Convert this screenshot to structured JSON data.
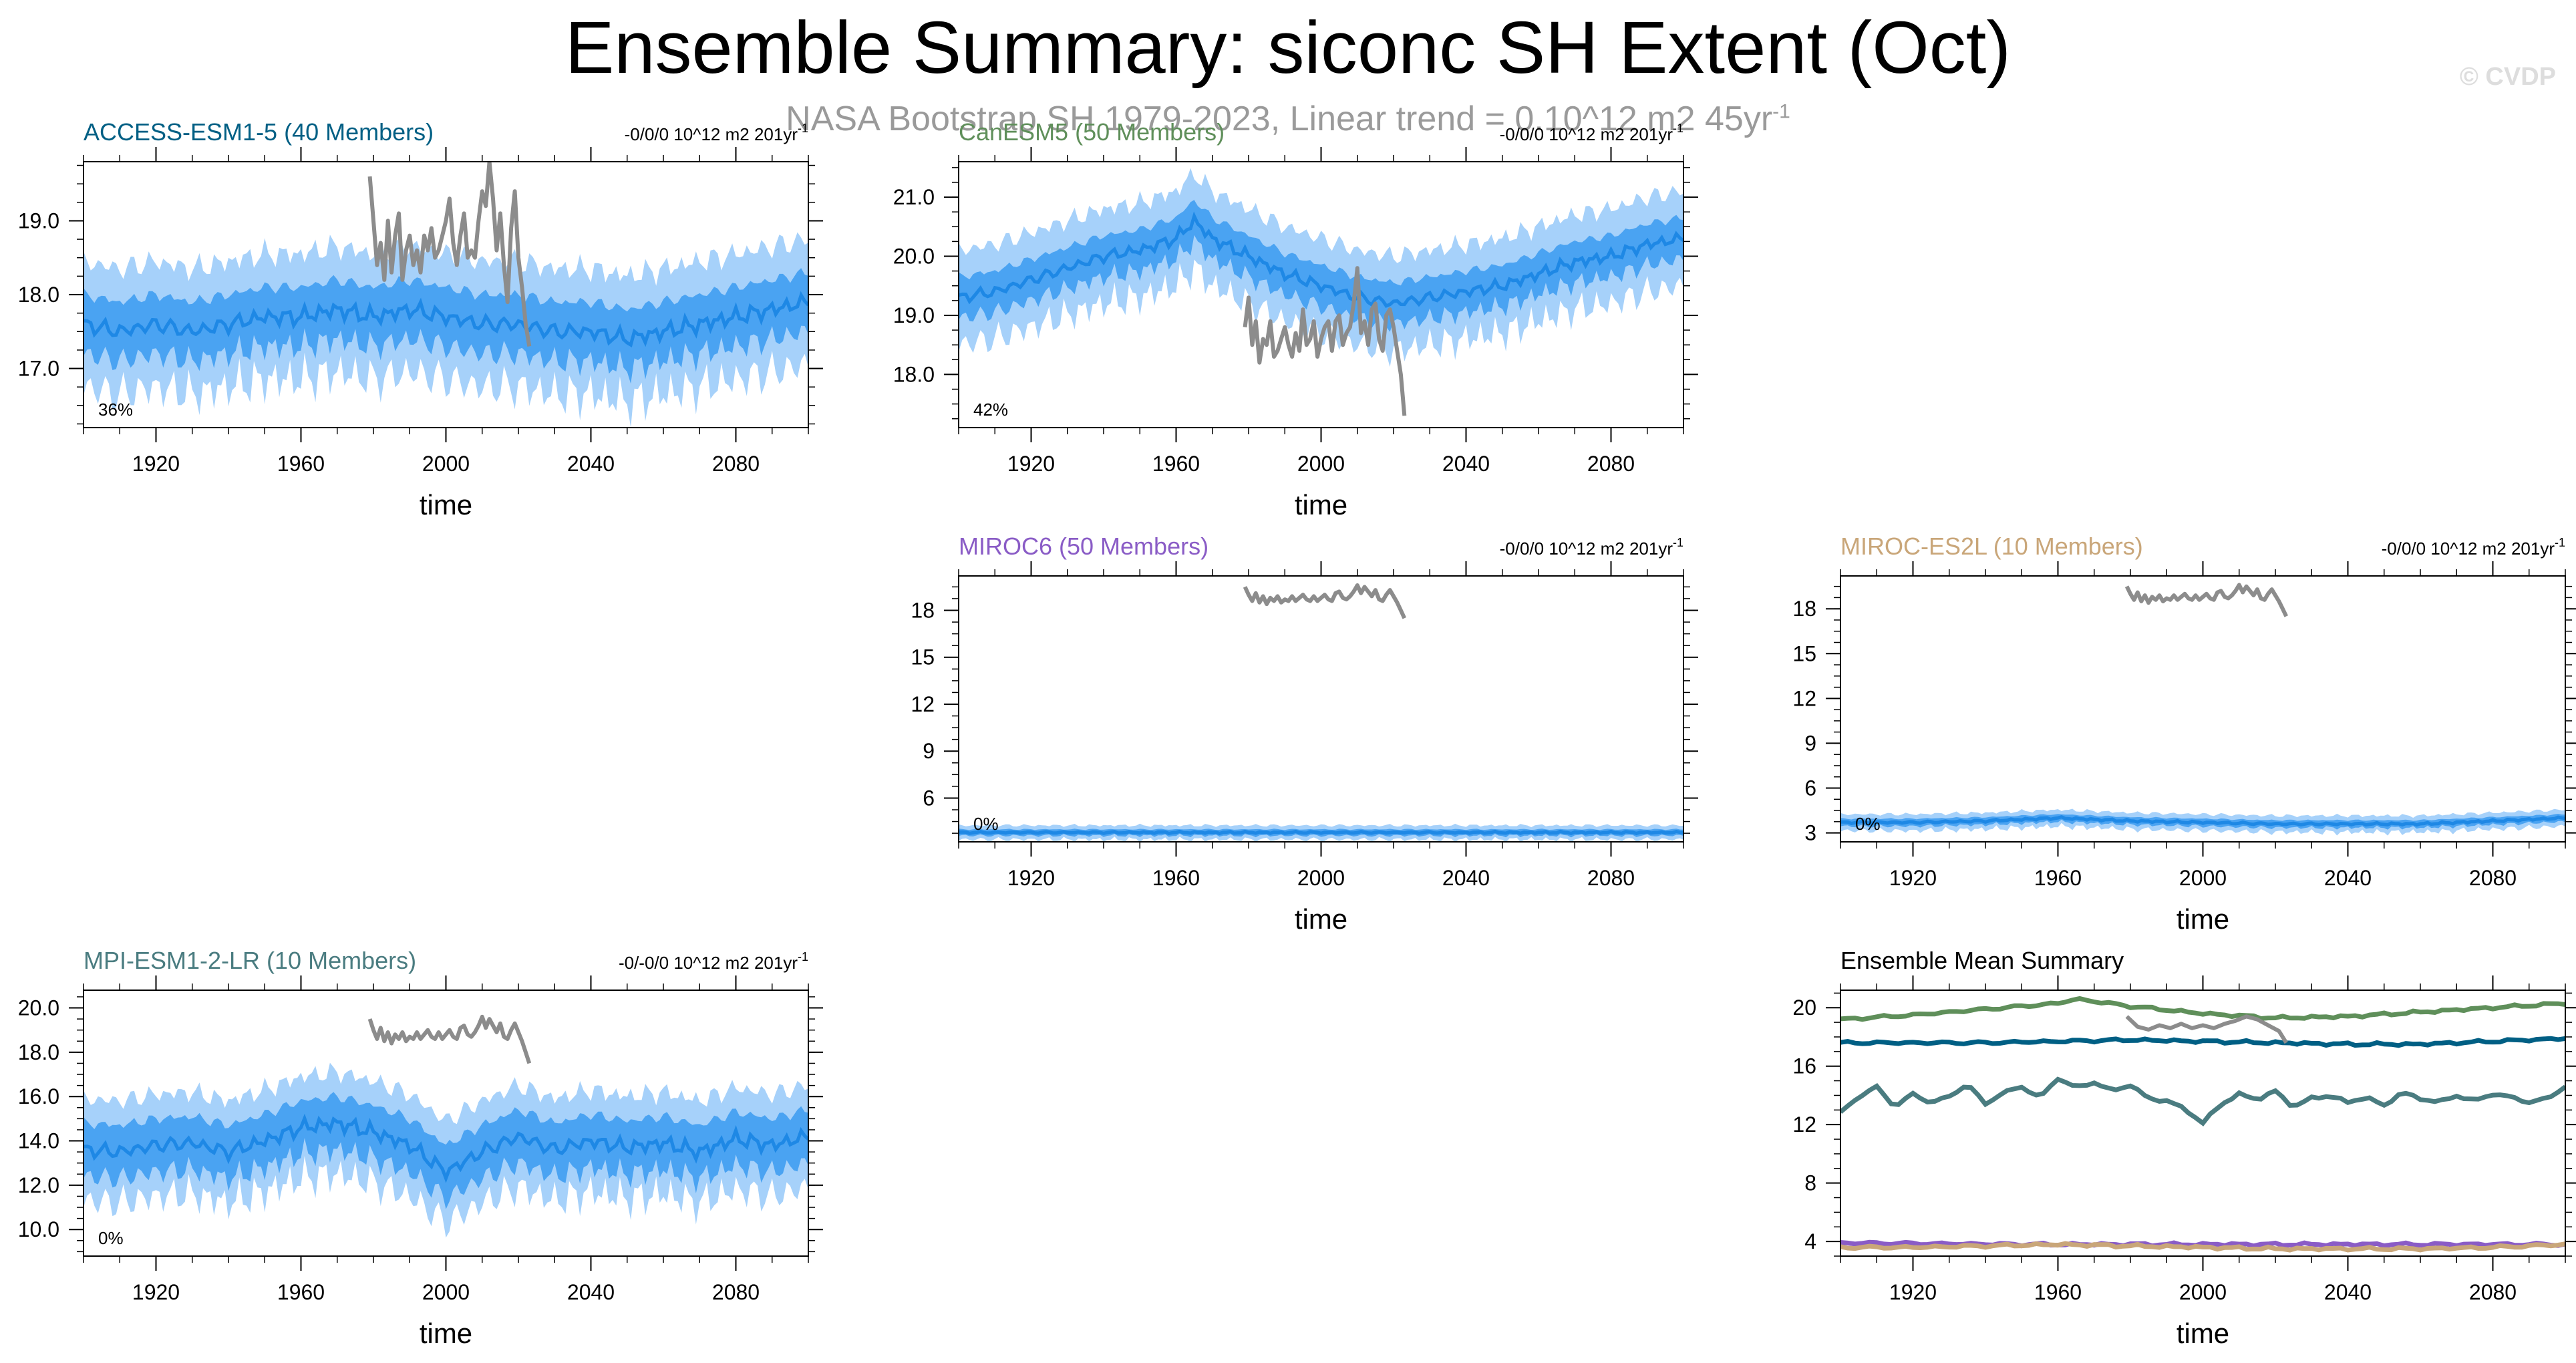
{
  "title": "Ensemble Summary: siconc SH Extent (Oct)",
  "subtitle": "NASA Bootstrap SH 1979-2023, Linear trend = 0.10^12 m2 45yr",
  "subtitle_sup": "-1",
  "credit": "© CVDP",
  "colors": {
    "band_outer": "#a6d1fa",
    "band_inner": "#4aa3f2",
    "mean_line": "#1e88e5",
    "obs_line": "#8c8c8c",
    "access": "#005f84",
    "canesm": "#5f8f5a",
    "miroc6": "#8a5cc6",
    "mirocesl": "#c9a679",
    "mpi": "#4a7c80"
  },
  "chart_data": [
    {
      "type": "line",
      "name": "access",
      "title": "ACCESS-ESM1-5 (40 Members)",
      "title_color": "#005f84",
      "trend": "-0/0/0 10^12 m2 201yr",
      "trend_sup": "-1",
      "percent": "36%",
      "xlabel": "time",
      "xlim": [
        1900,
        2100
      ],
      "xticks": [
        "1920",
        "1960",
        "2000",
        "2040",
        "2080"
      ],
      "ylim": [
        16.2,
        19.8
      ],
      "yticks": [
        "17.0",
        "18.0",
        "19.0"
      ],
      "yticks_val": [
        17.0,
        18.0,
        19.0
      ],
      "ensemble_mean": {
        "x": [
          1900,
          1910,
          1920,
          1930,
          1940,
          1950,
          1960,
          1970,
          1980,
          1990,
          2000,
          2010,
          2020,
          2030,
          2040,
          2050,
          2060,
          2070,
          2080,
          2090,
          2100
        ],
        "y": [
          17.6,
          17.5,
          17.6,
          17.5,
          17.6,
          17.7,
          17.7,
          17.8,
          17.7,
          17.8,
          17.7,
          17.6,
          17.6,
          17.5,
          17.5,
          17.4,
          17.5,
          17.6,
          17.7,
          17.8,
          17.9
        ]
      },
      "inner_halfwidth": 0.4,
      "outer_halfwidth": 0.85,
      "observations": {
        "x": [
          1979,
          1980,
          1981,
          1982,
          1983,
          1984,
          1985,
          1986,
          1987,
          1988,
          1989,
          1990,
          1991,
          1992,
          1993,
          1994,
          1995,
          1996,
          1997,
          1998,
          1999,
          2000,
          2001,
          2002,
          2003,
          2004,
          2005,
          2006,
          2007,
          2008,
          2009,
          2010,
          2011,
          2012,
          2013,
          2014,
          2015,
          2016,
          2017,
          2018,
          2019,
          2020,
          2021,
          2022,
          2023
        ],
        "y": [
          19.6,
          19.0,
          18.4,
          18.7,
          18.2,
          19.0,
          18.3,
          18.8,
          19.1,
          18.2,
          18.6,
          18.8,
          18.4,
          18.6,
          18.3,
          18.8,
          18.6,
          18.9,
          18.5,
          18.6,
          18.8,
          19.0,
          19.3,
          18.7,
          18.4,
          18.8,
          19.1,
          18.5,
          18.6,
          18.5,
          19.0,
          19.4,
          19.2,
          19.8,
          19.3,
          18.6,
          19.1,
          18.4,
          17.9,
          18.9,
          19.4,
          18.5,
          18.1,
          17.6,
          17.3
        ]
      }
    },
    {
      "type": "line",
      "name": "canesm",
      "title": "CanESM5 (50 Members)",
      "title_color": "#5f8f5a",
      "trend": "-0/0/0 10^12 m2 201yr",
      "trend_sup": "-1",
      "percent": "42%",
      "xlabel": "time",
      "xlim": [
        1900,
        2100
      ],
      "xticks": [
        "1920",
        "1960",
        "2000",
        "2040",
        "2080"
      ],
      "ylim": [
        17.1,
        21.6
      ],
      "yticks": [
        "18.0",
        "19.0",
        "20.0",
        "21.0"
      ],
      "yticks_val": [
        18.0,
        19.0,
        20.0,
        21.0
      ],
      "ensemble_mean": {
        "x": [
          1900,
          1910,
          1920,
          1930,
          1940,
          1950,
          1960,
          1965,
          1970,
          1980,
          1990,
          2000,
          2010,
          2020,
          2030,
          2040,
          2050,
          2060,
          2070,
          2080,
          2090,
          2100
        ],
        "y": [
          19.3,
          19.4,
          19.6,
          19.8,
          20.0,
          20.1,
          20.3,
          20.6,
          20.3,
          20.0,
          19.7,
          19.5,
          19.3,
          19.2,
          19.3,
          19.4,
          19.5,
          19.7,
          19.9,
          20.0,
          20.2,
          20.3
        ]
      },
      "inner_halfwidth": 0.35,
      "outer_halfwidth": 0.8,
      "observations": {
        "x": [
          1979,
          1980,
          1981,
          1982,
          1983,
          1984,
          1985,
          1986,
          1987,
          1988,
          1989,
          1990,
          1991,
          1992,
          1993,
          1994,
          1995,
          1996,
          1997,
          1998,
          1999,
          2000,
          2001,
          2002,
          2003,
          2004,
          2005,
          2006,
          2007,
          2008,
          2009,
          2010,
          2011,
          2012,
          2013,
          2014,
          2015,
          2016,
          2017,
          2018,
          2019,
          2020,
          2021,
          2022,
          2023
        ],
        "y": [
          18.8,
          19.3,
          18.5,
          18.9,
          18.2,
          18.6,
          18.5,
          18.9,
          18.3,
          18.4,
          18.6,
          18.8,
          18.5,
          18.3,
          18.7,
          18.4,
          19.1,
          18.5,
          18.6,
          18.9,
          18.3,
          18.6,
          18.8,
          18.9,
          18.4,
          18.9,
          19.0,
          18.5,
          18.7,
          18.8,
          19.2,
          19.8,
          18.7,
          18.9,
          18.5,
          19.1,
          19.2,
          18.6,
          18.4,
          19.0,
          19.1,
          18.8,
          18.4,
          18.0,
          17.3
        ]
      }
    },
    {
      "type": "line",
      "name": "miroc6",
      "title": "MIROC6 (50 Members)",
      "title_color": "#8a5cc6",
      "trend": "-0/0/0 10^12 m2 201yr",
      "trend_sup": "-1",
      "percent": "0%",
      "xlabel": "time",
      "xlim": [
        1900,
        2100
      ],
      "xticks": [
        "1920",
        "1960",
        "2000",
        "2040",
        "2080"
      ],
      "ylim": [
        3.2,
        20.2
      ],
      "yticks": [
        "6",
        "9",
        "12",
        "15",
        "18"
      ],
      "yticks_val": [
        6,
        9,
        12,
        15,
        18
      ],
      "ensemble_mean": {
        "x": [
          1900,
          1950,
          2000,
          2050,
          2100
        ],
        "y": [
          3.8,
          3.8,
          3.8,
          3.8,
          3.8
        ]
      },
      "inner_halfwidth": 0.2,
      "outer_halfwidth": 0.45,
      "observations": {
        "x": [
          1979,
          1980,
          1981,
          1982,
          1983,
          1984,
          1985,
          1986,
          1987,
          1988,
          1989,
          1990,
          1991,
          1992,
          1993,
          1994,
          1995,
          1996,
          1997,
          1998,
          1999,
          2000,
          2001,
          2002,
          2003,
          2004,
          2005,
          2006,
          2007,
          2008,
          2009,
          2010,
          2011,
          2012,
          2013,
          2014,
          2015,
          2016,
          2017,
          2018,
          2019,
          2020,
          2021,
          2022,
          2023
        ],
        "y": [
          19.5,
          19.0,
          18.6,
          19.1,
          18.5,
          18.9,
          18.4,
          18.8,
          18.6,
          18.9,
          18.5,
          18.7,
          18.6,
          18.9,
          18.6,
          18.8,
          19.0,
          18.7,
          18.6,
          18.9,
          18.6,
          18.8,
          19.0,
          18.7,
          18.6,
          19.1,
          19.2,
          18.8,
          18.7,
          18.9,
          19.2,
          19.6,
          19.1,
          19.5,
          19.2,
          18.9,
          19.3,
          18.7,
          18.6,
          19.0,
          19.3,
          18.9,
          18.5,
          18.0,
          17.5
        ]
      }
    },
    {
      "type": "line",
      "name": "mirocesl",
      "title": "MIROC-ES2L (10 Members)",
      "title_color": "#c9a679",
      "trend": "-0/0/0 10^12 m2 201yr",
      "trend_sup": "-1",
      "percent": "0%",
      "xlabel": "time",
      "xlim": [
        1900,
        2100
      ],
      "xticks": [
        "1920",
        "1960",
        "2000",
        "2040",
        "2080"
      ],
      "ylim": [
        2.4,
        20.2
      ],
      "yticks": [
        "3",
        "6",
        "9",
        "12",
        "15",
        "18"
      ],
      "yticks_val": [
        3,
        6,
        9,
        12,
        15,
        18
      ],
      "ensemble_mean": {
        "x": [
          1900,
          1920,
          1940,
          1960,
          1980,
          2000,
          2020,
          2040,
          2060,
          2080,
          2100
        ],
        "y": [
          3.7,
          3.7,
          3.8,
          4.0,
          3.8,
          3.7,
          3.6,
          3.6,
          3.6,
          3.8,
          4.0
        ]
      },
      "inner_halfwidth": 0.25,
      "outer_halfwidth": 0.55,
      "observations": {
        "x": [
          1979,
          1980,
          1981,
          1982,
          1983,
          1984,
          1985,
          1986,
          1987,
          1988,
          1989,
          1990,
          1991,
          1992,
          1993,
          1994,
          1995,
          1996,
          1997,
          1998,
          1999,
          2000,
          2001,
          2002,
          2003,
          2004,
          2005,
          2006,
          2007,
          2008,
          2009,
          2010,
          2011,
          2012,
          2013,
          2014,
          2015,
          2016,
          2017,
          2018,
          2019,
          2020,
          2021,
          2022,
          2023
        ],
        "y": [
          19.5,
          19.0,
          18.6,
          19.1,
          18.5,
          18.9,
          18.4,
          18.8,
          18.6,
          18.9,
          18.5,
          18.7,
          18.6,
          18.9,
          18.6,
          18.8,
          19.0,
          18.7,
          18.6,
          18.9,
          18.6,
          18.8,
          19.0,
          18.7,
          18.6,
          19.1,
          19.2,
          18.8,
          18.7,
          18.9,
          19.2,
          19.6,
          19.1,
          19.5,
          19.2,
          18.9,
          19.3,
          18.7,
          18.6,
          19.0,
          19.3,
          18.9,
          18.5,
          18.0,
          17.5
        ]
      }
    },
    {
      "type": "line",
      "name": "mpi",
      "title": "MPI-ESM1-2-LR (10 Members)",
      "title_color": "#4a7c80",
      "trend": "-0/-0/0 10^12 m2 201yr",
      "trend_sup": "-1",
      "percent": "0%",
      "xlabel": "time",
      "xlim": [
        1900,
        2100
      ],
      "xticks": [
        "1920",
        "1960",
        "2000",
        "2040",
        "2080"
      ],
      "ylim": [
        8.8,
        20.8
      ],
      "yticks": [
        "10.0",
        "12.0",
        "14.0",
        "16.0",
        "18.0",
        "20.0"
      ],
      "yticks_val": [
        10.0,
        12.0,
        14.0,
        16.0,
        18.0,
        20.0
      ],
      "ensemble_mean": {
        "x": [
          1900,
          1910,
          1920,
          1930,
          1940,
          1950,
          1960,
          1970,
          1980,
          1990,
          2000,
          2010,
          2020,
          2030,
          2040,
          2050,
          2060,
          2070,
          2080,
          2090,
          2100
        ],
        "y": [
          13.6,
          13.5,
          13.8,
          13.9,
          13.5,
          14.0,
          14.6,
          14.8,
          14.4,
          13.8,
          12.6,
          13.5,
          14.2,
          13.6,
          14.0,
          13.7,
          13.9,
          13.5,
          14.1,
          13.8,
          14.2
        ]
      },
      "inner_halfwidth": 1.2,
      "outer_halfwidth": 2.3,
      "observations": {
        "x": [
          1979,
          1980,
          1981,
          1982,
          1983,
          1984,
          1985,
          1986,
          1987,
          1988,
          1989,
          1990,
          1991,
          1992,
          1993,
          1994,
          1995,
          1996,
          1997,
          1998,
          1999,
          2000,
          2001,
          2002,
          2003,
          2004,
          2005,
          2006,
          2007,
          2008,
          2009,
          2010,
          2011,
          2012,
          2013,
          2014,
          2015,
          2016,
          2017,
          2018,
          2019,
          2020,
          2021,
          2022,
          2023
        ],
        "y": [
          19.5,
          19.0,
          18.6,
          19.1,
          18.5,
          18.9,
          18.4,
          18.8,
          18.6,
          18.9,
          18.5,
          18.7,
          18.6,
          18.9,
          18.6,
          18.8,
          19.0,
          18.7,
          18.6,
          18.9,
          18.6,
          18.8,
          19.0,
          18.7,
          18.6,
          19.1,
          19.2,
          18.8,
          18.7,
          18.9,
          19.2,
          19.6,
          19.1,
          19.5,
          19.2,
          18.9,
          19.3,
          18.7,
          18.6,
          19.0,
          19.3,
          18.9,
          18.5,
          18.0,
          17.5
        ]
      }
    },
    {
      "type": "line",
      "name": "summary",
      "title": "Ensemble Mean Summary",
      "title_color": "#000000",
      "xlabel": "time",
      "xlim": [
        1900,
        2100
      ],
      "xticks": [
        "1920",
        "1960",
        "2000",
        "2040",
        "2080"
      ],
      "ylim": [
        3.0,
        21.2
      ],
      "yticks": [
        "4",
        "8",
        "12",
        "16",
        "20"
      ],
      "yticks_val": [
        4,
        8,
        12,
        16,
        20
      ],
      "series": [
        {
          "color": "#5f8f5a",
          "x": [
            1900,
            1920,
            1940,
            1960,
            1965,
            1980,
            2000,
            2020,
            2040,
            2060,
            2080,
            2100
          ],
          "y": [
            19.2,
            19.5,
            19.9,
            20.3,
            20.6,
            20.1,
            19.6,
            19.3,
            19.4,
            19.7,
            20.0,
            20.3
          ]
        },
        {
          "color": "#005f84",
          "x": [
            1900,
            1920,
            1940,
            1960,
            1980,
            2000,
            2020,
            2040,
            2060,
            2080,
            2100
          ],
          "y": [
            17.6,
            17.6,
            17.6,
            17.7,
            17.8,
            17.7,
            17.6,
            17.5,
            17.5,
            17.7,
            17.9
          ]
        },
        {
          "color": "#4a7c80",
          "x": [
            1900,
            1905,
            1910,
            1915,
            1920,
            1925,
            1930,
            1935,
            1940,
            1945,
            1950,
            1955,
            1960,
            1965,
            1970,
            1975,
            1980,
            1985,
            1990,
            1995,
            2000,
            2005,
            2010,
            2015,
            2020,
            2025,
            2030,
            2035,
            2040,
            2045,
            2050,
            2055,
            2060,
            2065,
            2070,
            2075,
            2080,
            2085,
            2090,
            2095,
            2100
          ],
          "y": [
            12.8,
            13.9,
            14.6,
            13.2,
            14.1,
            13.5,
            13.9,
            14.8,
            13.4,
            14.2,
            14.6,
            13.8,
            15.2,
            14.5,
            14.9,
            14.3,
            14.7,
            13.8,
            13.6,
            13.1,
            12.1,
            13.4,
            14.1,
            13.7,
            14.3,
            13.2,
            13.8,
            14.0,
            13.5,
            13.9,
            13.3,
            14.2,
            13.8,
            13.5,
            14.0,
            13.6,
            14.1,
            13.9,
            13.5,
            13.8,
            14.6
          ]
        },
        {
          "color": "#8a5cc6",
          "x": [
            1900,
            1950,
            2000,
            2050,
            2100
          ],
          "y": [
            3.9,
            3.8,
            3.8,
            3.8,
            3.8
          ]
        },
        {
          "color": "#c9a679",
          "x": [
            1900,
            1920,
            1940,
            1960,
            1980,
            2000,
            2020,
            2040,
            2060,
            2080,
            2100
          ],
          "y": [
            3.6,
            3.6,
            3.7,
            3.8,
            3.7,
            3.6,
            3.5,
            3.5,
            3.5,
            3.6,
            3.8
          ]
        }
      ],
      "observations": {
        "x": [
          1979,
          1982,
          1985,
          1988,
          1991,
          1994,
          1997,
          2000,
          2003,
          2006,
          2009,
          2012,
          2015,
          2018,
          2021,
          2023
        ],
        "y": [
          19.4,
          18.7,
          18.5,
          18.8,
          18.6,
          18.9,
          18.6,
          18.8,
          18.6,
          18.9,
          19.1,
          19.4,
          19.2,
          18.8,
          18.4,
          17.6
        ]
      }
    }
  ]
}
